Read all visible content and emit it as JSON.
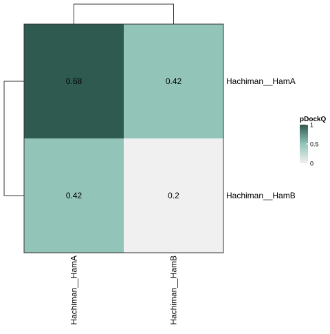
{
  "chart_data": {
    "type": "heatmap",
    "title": "",
    "xlabel": "",
    "ylabel": "",
    "rows": [
      "Hachiman__HamA",
      "Hachiman__HamB"
    ],
    "columns": [
      "Hachiman__HamA",
      "Hachiman__HamB"
    ],
    "values": [
      [
        0.68,
        0.42
      ],
      [
        0.42,
        0.2
      ]
    ],
    "cell_labels": [
      [
        "0.68",
        "0.42"
      ],
      [
        "0.42",
        "0.2"
      ]
    ],
    "row_dendrogram": true,
    "column_dendrogram": true,
    "legend": {
      "title": "pDockQ",
      "ticks": [
        "1",
        "0.5",
        "0"
      ],
      "tick_values": [
        1,
        0.5,
        0
      ],
      "placement": "right",
      "colors": {
        "low": "#f0f0f0",
        "mid": "#93c4b8",
        "high": "#2e5a4f"
      }
    },
    "border_color": "#333333",
    "dendrogram_color": "#333333",
    "grid": false
  }
}
